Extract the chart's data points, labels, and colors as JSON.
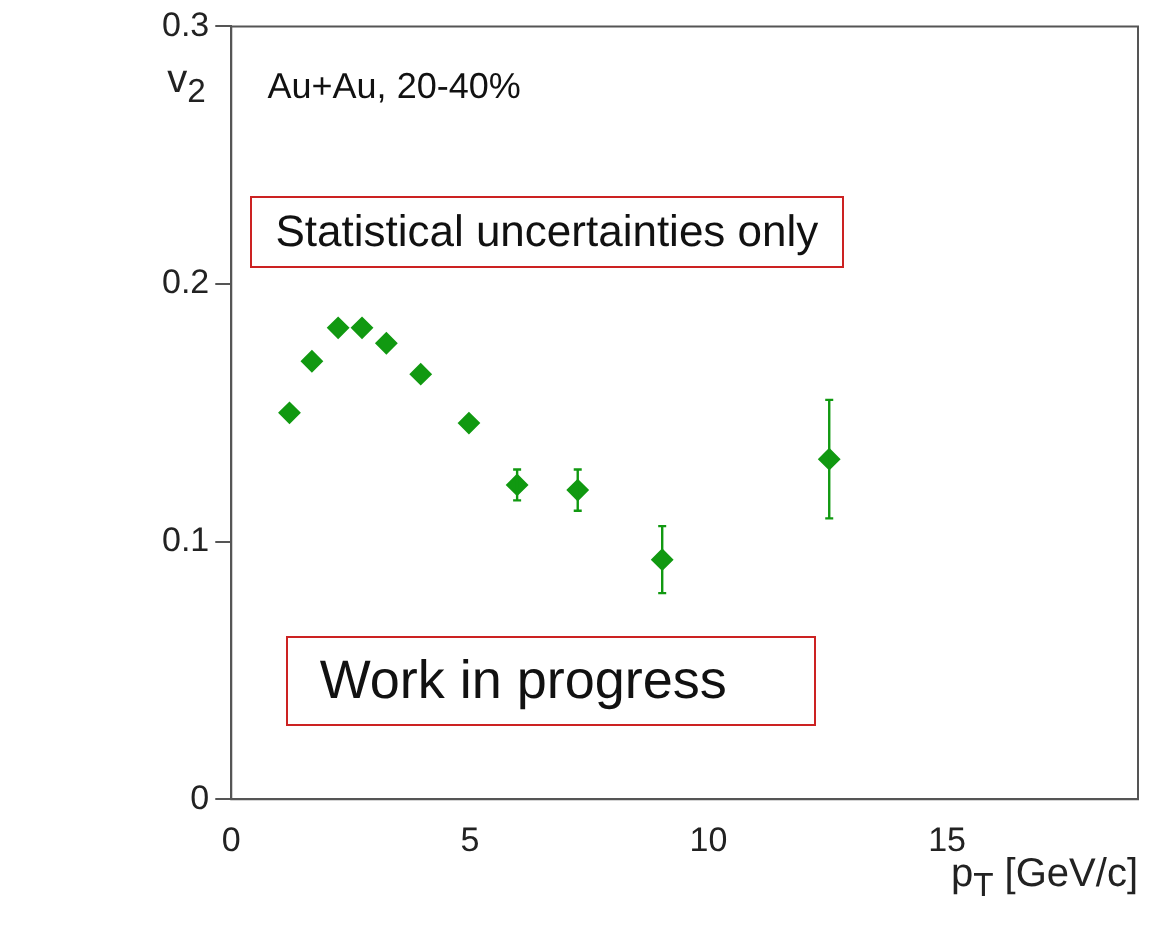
{
  "chart_data": {
    "type": "scatter",
    "xlabel": "p$_{T}$ [GeV/c]",
    "ylabel": "v$_{2}$",
    "x": [
      1.22,
      1.69,
      2.24,
      2.74,
      3.25,
      3.97,
      4.98,
      5.99,
      7.26,
      9.03,
      12.53
    ],
    "series": [
      {
        "color": "#119911",
        "values": [
          0.15,
          0.17,
          0.183,
          0.183,
          0.177,
          0.165,
          0.146,
          0.122,
          0.12,
          0.093,
          0.132
        ],
        "errors": [
          null,
          null,
          null,
          null,
          null,
          null,
          null,
          0.006,
          0.008,
          0.013,
          0.023
        ]
      }
    ],
    "xlim": [
      0,
      19
    ],
    "xticks": [
      0,
      5,
      10,
      15
    ],
    "ylim": [
      0,
      0.3
    ],
    "yticks": [
      0,
      0.1,
      0.2,
      0.3
    ],
    "marker": "diamond",
    "grid": false,
    "legend": false,
    "annotations": [
      "Au+Au, 20-40%",
      "Statistical uncertainties only",
      "Work in progress"
    ]
  }
}
